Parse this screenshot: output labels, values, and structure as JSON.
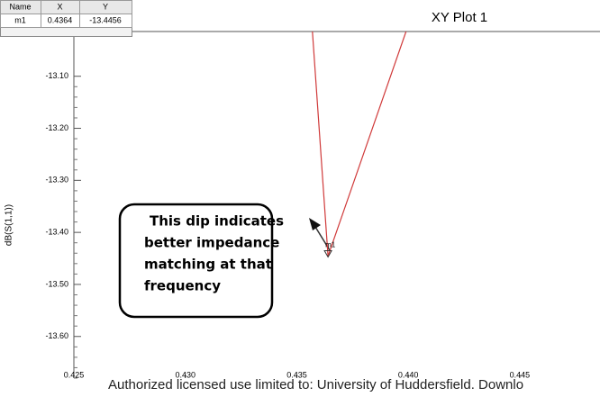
{
  "chart_data": {
    "type": "line",
    "title": "XY Plot 1",
    "y_label": "dB(S(1,1))",
    "x": [
      0.4357,
      0.4364,
      0.4399
    ],
    "series": [
      {
        "name": "dB(S(1,1))",
        "color": "#d03a3a",
        "values": [
          -13.014,
          -13.4456,
          -13.014
        ]
      }
    ],
    "xlim": [
      0.425,
      0.4486
    ],
    "xticks": [
      0.425,
      {
        "value": 0.43,
        "label": "0.430"
      },
      0.435,
      {
        "value": 0.44,
        "label": "0.440"
      },
      0.445
    ],
    "ylim": [
      -13.68,
      -13.014
    ],
    "yticks": [
      {
        "value": -13.1,
        "label": "-13.10"
      },
      {
        "value": -13.2,
        "label": "-13.20"
      },
      {
        "value": -13.3,
        "label": "-13.30"
      },
      {
        "value": -13.4,
        "label": "-13.40"
      },
      {
        "value": -13.5,
        "label": "-13.50"
      },
      {
        "value": -13.6,
        "label": "-13.60"
      }
    ],
    "grid": false,
    "marker_table": {
      "header": [
        "Name",
        "X",
        "Y"
      ],
      "rows": [
        [
          "m1",
          0.4364,
          -13.4456
        ]
      ]
    },
    "annotation": [
      "This dip indicates",
      "better impedance",
      "matching at that",
      "frequency"
    ],
    "watermark": "Authorized licensed use limited to: University of Huddersfield. Downlo"
  }
}
